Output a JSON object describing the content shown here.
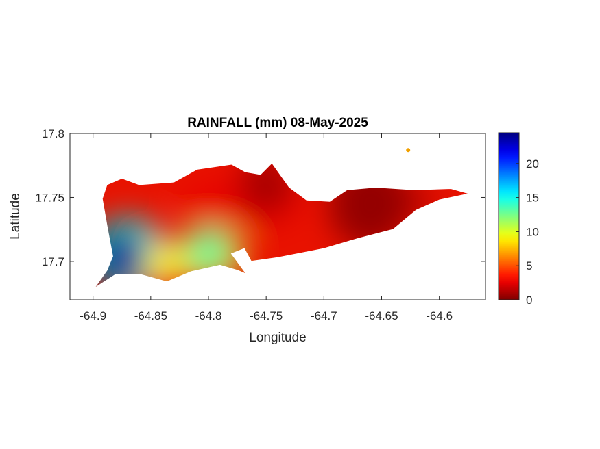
{
  "chart_data": {
    "type": "heatmap",
    "title": "RAINFALL (mm) 08-May-2025",
    "xlabel": "Longitude",
    "ylabel": "Latitude",
    "xlim": [
      -64.92,
      -64.56
    ],
    "ylim": [
      17.67,
      17.8
    ],
    "x_ticks": [
      -64.9,
      -64.85,
      -64.8,
      -64.75,
      -64.7,
      -64.65,
      -64.6
    ],
    "x_tick_labels": [
      "-64.9",
      "-64.85",
      "-64.8",
      "-64.75",
      "-64.7",
      "-64.65",
      "-64.6"
    ],
    "y_ticks": [
      17.7,
      17.75,
      17.8
    ],
    "y_tick_labels": [
      "17.7",
      "17.75",
      "17.8"
    ],
    "colorbar": {
      "colormap": "jet",
      "direction": "reversed",
      "range": [
        0,
        24.5
      ],
      "ticks": [
        0,
        5,
        10,
        15,
        20
      ],
      "tick_labels": [
        "0",
        "5",
        "10",
        "15",
        "20"
      ],
      "low_color": "#800000",
      "high_color": "#00008f"
    },
    "rainfall_peaks": [
      {
        "lon": -64.875,
        "lat": 17.703,
        "value": 24
      },
      {
        "lon": -64.8,
        "lat": 17.708,
        "value": 13
      },
      {
        "lon": -64.84,
        "lat": 17.698,
        "value": 9
      },
      {
        "lon": -64.66,
        "lat": 17.745,
        "value": 0.5
      },
      {
        "lon": -64.75,
        "lat": 17.76,
        "value": 1
      }
    ],
    "region_outline": [
      [
        -64.899,
        17.679
      ],
      [
        -64.88,
        17.69
      ],
      [
        -64.86,
        17.69
      ],
      [
        -64.836,
        17.684
      ],
      [
        -64.815,
        17.692
      ],
      [
        -64.79,
        17.697
      ],
      [
        -64.775,
        17.693
      ],
      [
        -64.767,
        17.69
      ],
      [
        -64.78,
        17.706
      ],
      [
        -64.769,
        17.71
      ],
      [
        -64.763,
        17.7
      ],
      [
        -64.74,
        17.703
      ],
      [
        -64.7,
        17.71
      ],
      [
        -64.67,
        17.718
      ],
      [
        -64.64,
        17.725
      ],
      [
        -64.62,
        17.74
      ],
      [
        -64.6,
        17.748
      ],
      [
        -64.574,
        17.753
      ],
      [
        -64.59,
        17.757
      ],
      [
        -64.622,
        17.756
      ],
      [
        -64.655,
        17.758
      ],
      [
        -64.68,
        17.756
      ],
      [
        -64.695,
        17.747
      ],
      [
        -64.715,
        17.748
      ],
      [
        -64.73,
        17.758
      ],
      [
        -64.745,
        17.777
      ],
      [
        -64.755,
        17.768
      ],
      [
        -64.768,
        17.77
      ],
      [
        -64.78,
        17.776
      ],
      [
        -64.81,
        17.772
      ],
      [
        -64.83,
        17.762
      ],
      [
        -64.86,
        17.76
      ],
      [
        -64.875,
        17.765
      ],
      [
        -64.888,
        17.76
      ],
      [
        -64.892,
        17.749
      ],
      [
        -64.888,
        17.728
      ],
      [
        -64.883,
        17.704
      ],
      [
        -64.888,
        17.693
      ]
    ],
    "islet": {
      "lon": -64.627,
      "lat": 17.787
    }
  }
}
